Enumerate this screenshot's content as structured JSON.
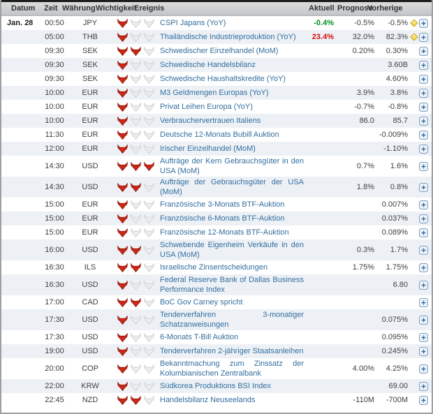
{
  "header": {
    "datum": "Datum",
    "zeit": "Zeit",
    "waehrung": "Währung",
    "wichtigkeit": "Wichtigkeit",
    "ereignis": "Ereignis",
    "aktuell": "Aktuell",
    "prognose": "Prognose",
    "vorherige": "Vorherige"
  },
  "colors": {
    "green": "#009121",
    "red": "#d40f0f",
    "event_link": "#336e9e",
    "row_alt_bg": "#edf1f6",
    "bull_active": "#cf2717",
    "bull_inactive": "#ededed"
  },
  "icons": {
    "importance": "bull-icon",
    "expand": "plus-icon",
    "alert": "diamond-icon"
  },
  "rows": [
    {
      "datum": "Jan. 28",
      "zeit": "00:50",
      "waehrung": "JPY",
      "importance": 1,
      "ereignis": "CSPI Japans (YoY)",
      "aktuell": "-0.4%",
      "aktuell_color": "green",
      "prognose": "-0.5%",
      "vorherige": "-0.5%",
      "alert": true
    },
    {
      "datum": "",
      "zeit": "05:00",
      "waehrung": "THB",
      "importance": 1,
      "ereignis": "Thailändische Industrieproduktion (YoY)",
      "aktuell": "23.4%",
      "aktuell_color": "red",
      "prognose": "32.0%",
      "vorherige": "82.3%",
      "alert": true
    },
    {
      "datum": "",
      "zeit": "09:30",
      "waehrung": "SEK",
      "importance": 2,
      "ereignis": "Schwedischer Einzelhandel (MoM)",
      "aktuell": "",
      "prognose": "0.20%",
      "vorherige": "0.30%",
      "alert": false
    },
    {
      "datum": "",
      "zeit": "09:30",
      "waehrung": "SEK",
      "importance": 1,
      "ereignis": "Schwedische Handelsbilanz",
      "aktuell": "",
      "prognose": "",
      "vorherige": "3.60B",
      "alert": false
    },
    {
      "datum": "",
      "zeit": "09:30",
      "waehrung": "SEK",
      "importance": 1,
      "ereignis": "Schwedische Haushaltskredite (YoY)",
      "aktuell": "",
      "prognose": "",
      "vorherige": "4.60%",
      "alert": false
    },
    {
      "datum": "",
      "zeit": "10:00",
      "waehrung": "EUR",
      "importance": 1,
      "ereignis": "M3 Geldmengen Europas (YoY)",
      "aktuell": "",
      "prognose": "3.9%",
      "vorherige": "3.8%",
      "alert": false
    },
    {
      "datum": "",
      "zeit": "10:00",
      "waehrung": "EUR",
      "importance": 1,
      "ereignis": "Privat Leihen Europa (YoY)",
      "aktuell": "",
      "prognose": "-0.7%",
      "vorherige": "-0.8%",
      "alert": false
    },
    {
      "datum": "",
      "zeit": "10:00",
      "waehrung": "EUR",
      "importance": 1,
      "ereignis": "Verbrauchervertrauen Italiens",
      "aktuell": "",
      "prognose": "86.0",
      "vorherige": "85.7",
      "alert": false
    },
    {
      "datum": "",
      "zeit": "11:30",
      "waehrung": "EUR",
      "importance": 1,
      "ereignis": "Deutsche 12-Monats Bubill Auktion",
      "aktuell": "",
      "prognose": "",
      "vorherige": "-0.009%",
      "alert": false
    },
    {
      "datum": "",
      "zeit": "12:00",
      "waehrung": "EUR",
      "importance": 1,
      "ereignis": "Irischer Einzelhandel (MoM)",
      "aktuell": "",
      "prognose": "",
      "vorherige": "-1.10%",
      "alert": false
    },
    {
      "datum": "",
      "zeit": "14:30",
      "waehrung": "USD",
      "importance": 3,
      "ereignis": "Aufträge der Kern Gebrauchsgüter in den USA (MoM)",
      "aktuell": "",
      "prognose": "0.7%",
      "vorherige": "1.6%",
      "alert": false
    },
    {
      "datum": "",
      "zeit": "14:30",
      "waehrung": "USD",
      "importance": 2,
      "ereignis": "Aufträge der Gebrauchsgüter der USA (MoM)",
      "aktuell": "",
      "prognose": "1.8%",
      "vorherige": "0.8%",
      "alert": false
    },
    {
      "datum": "",
      "zeit": "15:00",
      "waehrung": "EUR",
      "importance": 1,
      "ereignis": "Französische 3-Monats BTF-Auktion",
      "aktuell": "",
      "prognose": "",
      "vorherige": "0.007%",
      "alert": false
    },
    {
      "datum": "",
      "zeit": "15:00",
      "waehrung": "EUR",
      "importance": 1,
      "ereignis": "Französische 6-Monats BTF-Auktion",
      "aktuell": "",
      "prognose": "",
      "vorherige": "0.037%",
      "alert": false
    },
    {
      "datum": "",
      "zeit": "15:00",
      "waehrung": "EUR",
      "importance": 1,
      "ereignis": "Französische 12-Monats BTF-Auktion",
      "aktuell": "",
      "prognose": "",
      "vorherige": "0.089%",
      "alert": false
    },
    {
      "datum": "",
      "zeit": "16:00",
      "waehrung": "USD",
      "importance": 2,
      "ereignis": "Schwebende Eigenheim Verkäufe in den USA (MoM)",
      "aktuell": "",
      "prognose": "0.3%",
      "vorherige": "1.7%",
      "alert": false
    },
    {
      "datum": "",
      "zeit": "16:30",
      "waehrung": "ILS",
      "importance": 2,
      "ereignis": "Israelische Zinsentscheidungen",
      "aktuell": "",
      "prognose": "1.75%",
      "vorherige": "1.75%",
      "alert": false
    },
    {
      "datum": "",
      "zeit": "16:30",
      "waehrung": "USD",
      "importance": 1,
      "ereignis": "Federal Reserve Bank of Dallas Business Performance Index",
      "aktuell": "",
      "prognose": "",
      "vorherige": "6.80",
      "alert": false
    },
    {
      "datum": "",
      "zeit": "17:00",
      "waehrung": "CAD",
      "importance": 2,
      "ereignis": "BoC Gov Carney spricht",
      "aktuell": "",
      "prognose": "",
      "vorherige": "",
      "alert": false
    },
    {
      "datum": "",
      "zeit": "17:30",
      "waehrung": "USD",
      "importance": 1,
      "ereignis": "Tenderverfahren 3-monatiger Schatzanweisungen",
      "aktuell": "",
      "prognose": "",
      "vorherige": "0.075%",
      "alert": false
    },
    {
      "datum": "",
      "zeit": "17:30",
      "waehrung": "USD",
      "importance": 1,
      "ereignis": "6-Monats T-Bill Auktion",
      "aktuell": "",
      "prognose": "",
      "vorherige": "0.095%",
      "alert": false
    },
    {
      "datum": "",
      "zeit": "19:00",
      "waehrung": "USD",
      "importance": 1,
      "ereignis": "Tenderverfahren 2-jähriger Staatsanleihen",
      "aktuell": "",
      "prognose": "",
      "vorherige": "0.245%",
      "alert": false
    },
    {
      "datum": "",
      "zeit": "20:00",
      "waehrung": "COP",
      "importance": 1,
      "ereignis": "Bekanntmachung zum Zinssatz der Kolumbianischen Zentralbank",
      "aktuell": "",
      "prognose": "4.00%",
      "vorherige": "4.25%",
      "alert": false
    },
    {
      "datum": "",
      "zeit": "22:00",
      "waehrung": "KRW",
      "importance": 1,
      "ereignis": "Südkorea Produktions BSI Index",
      "aktuell": "",
      "prognose": "",
      "vorherige": "69.00",
      "alert": false
    },
    {
      "datum": "",
      "zeit": "22:45",
      "waehrung": "NZD",
      "importance": 2,
      "ereignis": "Handelsbilanz Neuseelands",
      "aktuell": "",
      "prognose": "-110M",
      "vorherige": "-700M",
      "alert": false
    }
  ]
}
